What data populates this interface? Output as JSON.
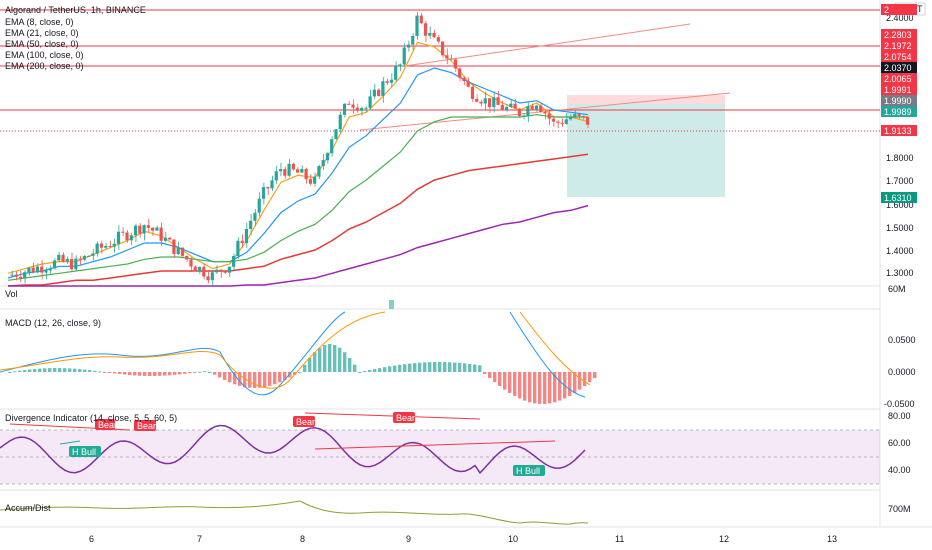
{
  "header": {
    "title": "Algorand / TetherUS, 1h, BINANCE",
    "indicators": [
      "EMA (8, close, 0)",
      "EMA (21, close, 0)",
      "EMA (50, close, 0)",
      "EMA (100, close, 0)",
      "EMA (200, close, 0)"
    ],
    "currency": "USDT"
  },
  "panes": {
    "vol": "Vol",
    "macd": "MACD (12, 26, close, 9)",
    "div": "Divergence Indicator (14, close, 5, 5, 60, 5)",
    "accum": "Accum/Dist"
  },
  "price_axis_ticks": [
    "2.4000",
    "1.8000",
    "1.7000",
    "1.6000",
    "1.5000",
    "1.4000",
    "1.3000"
  ],
  "price_tags": [
    {
      "text": "2",
      "color": "#f23645"
    },
    {
      "text": "2.2803",
      "color": "#f23645"
    },
    {
      "text": "2.1972",
      "color": "#f23645"
    },
    {
      "text": "2.0754",
      "color": "#f23645"
    },
    {
      "text": "2.0370",
      "color": "#131722"
    },
    {
      "text": "2.0065",
      "color": "#f23645"
    },
    {
      "text": "1.9991",
      "color": "#f23645"
    },
    {
      "text": "1.9990",
      "color": "#787b86"
    },
    {
      "text": "1.9989",
      "color": "#26a69a"
    },
    {
      "text": "1.9133",
      "color": "#f23645"
    },
    {
      "text": "1.6310",
      "color": "#089981"
    }
  ],
  "vol_axis": "60M",
  "macd_axis": [
    "0.0500",
    "0.0000",
    "-0.0500"
  ],
  "div_axis": [
    "80.00",
    "60.00",
    "40.00"
  ],
  "accum_axis": "700M",
  "divergence_labels": [
    {
      "text": "Bear",
      "color": "#f23645"
    },
    {
      "text": "Bear",
      "color": "#f23645"
    },
    {
      "text": "Bear",
      "color": "#f23645"
    },
    {
      "text": "Bear",
      "color": "#f23645"
    },
    {
      "text": "H Bull",
      "color": "#22ab94"
    },
    {
      "text": "H Bull",
      "color": "#22ab94"
    }
  ],
  "time_axis": [
    "6",
    "7",
    "8",
    "9",
    "10",
    "11",
    "12",
    "13"
  ],
  "colors": {
    "up": "#26a69a",
    "down": "#ef5350",
    "ema8": "#f7a21b",
    "ema21": "#2196f3",
    "ema50": "#4caf50",
    "ema100": "#e53935",
    "ema200": "#9c27b0"
  },
  "chart_data": {
    "type": "candlestick",
    "title": "Algorand / TetherUS, 1h, BINANCE",
    "x_ticks": [
      "6",
      "7",
      "8",
      "9",
      "10",
      "11",
      "12",
      "13"
    ],
    "y_ticks": [
      2.4,
      1.8,
      1.7,
      1.6,
      1.5,
      1.4,
      1.3
    ],
    "horizontal_levels": [
      2.4,
      2.2803,
      2.1972,
      2.0754,
      2.0065,
      1.9991,
      1.9133
    ],
    "position": {
      "entry": 1.999,
      "stop": 2.0065,
      "target": 1.631
    },
    "price_path": [
      1.3,
      1.32,
      1.34,
      1.36,
      1.35,
      1.4,
      1.44,
      1.48,
      1.52,
      1.47,
      1.4,
      1.34,
      1.3,
      1.35,
      1.5,
      1.65,
      1.76,
      1.74,
      1.7,
      1.9,
      2.05,
      2.02,
      2.12,
      2.2,
      2.4,
      2.3,
      2.22,
      2.1,
      2.05,
      2.02,
      2.0,
      2.05,
      1.95,
      1.98,
      1.96
    ],
    "ema_series": [
      {
        "name": "EMA (8, close, 0)",
        "values": [
          1.31,
          1.33,
          1.35,
          1.36,
          1.36,
          1.39,
          1.42,
          1.45,
          1.49,
          1.47,
          1.42,
          1.37,
          1.33,
          1.35,
          1.45,
          1.58,
          1.7,
          1.73,
          1.72,
          1.84,
          1.98,
          2.0,
          2.07,
          2.15,
          2.3,
          2.28,
          2.22,
          2.13,
          2.08,
          2.04,
          2.01,
          2.04,
          1.98,
          1.98,
          1.96
        ]
      },
      {
        "name": "EMA (21, close, 0)",
        "values": [
          1.29,
          1.31,
          1.32,
          1.34,
          1.34,
          1.36,
          1.38,
          1.41,
          1.44,
          1.44,
          1.42,
          1.39,
          1.36,
          1.36,
          1.4,
          1.48,
          1.57,
          1.62,
          1.65,
          1.74,
          1.85,
          1.9,
          1.97,
          2.04,
          2.16,
          2.19,
          2.17,
          2.13,
          2.1,
          2.07,
          2.04,
          2.05,
          2.01,
          2.0,
          1.99
        ]
      },
      {
        "name": "EMA (50, close, 0)",
        "values": [
          1.28,
          1.29,
          1.3,
          1.31,
          1.32,
          1.33,
          1.34,
          1.35,
          1.37,
          1.38,
          1.38,
          1.37,
          1.36,
          1.36,
          1.37,
          1.4,
          1.45,
          1.49,
          1.52,
          1.58,
          1.66,
          1.71,
          1.77,
          1.83,
          1.92,
          1.96,
          1.98,
          1.98,
          1.98,
          1.98,
          1.98,
          1.99,
          1.98,
          1.98,
          1.98
        ]
      },
      {
        "name": "EMA (100, close, 0)",
        "values": [
          1.25,
          1.26,
          1.26,
          1.27,
          1.28,
          1.28,
          1.29,
          1.3,
          1.31,
          1.32,
          1.32,
          1.32,
          1.32,
          1.32,
          1.33,
          1.34,
          1.37,
          1.39,
          1.41,
          1.45,
          1.5,
          1.53,
          1.57,
          1.61,
          1.67,
          1.71,
          1.73,
          1.75,
          1.76,
          1.77,
          1.78,
          1.79,
          1.8,
          1.81,
          1.82
        ]
      },
      {
        "name": "EMA (200, close, 0)",
        "values": [
          1.2,
          1.2,
          1.21,
          1.21,
          1.22,
          1.22,
          1.23,
          1.23,
          1.24,
          1.24,
          1.25,
          1.25,
          1.25,
          1.25,
          1.26,
          1.26,
          1.27,
          1.28,
          1.29,
          1.31,
          1.33,
          1.35,
          1.37,
          1.39,
          1.42,
          1.44,
          1.46,
          1.48,
          1.5,
          1.52,
          1.53,
          1.55,
          1.57,
          1.58,
          1.6
        ]
      }
    ]
  }
}
